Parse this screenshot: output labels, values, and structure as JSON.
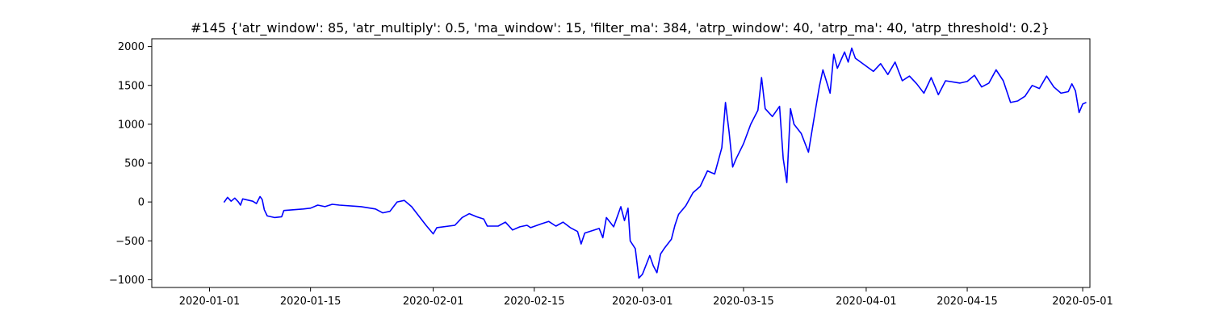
{
  "chart_data": {
    "type": "line",
    "title": "#145 {'atr_window': 85, 'atr_multiply': 0.5, 'ma_window': 15, 'filter_ma': 384, 'atrp_window': 40, 'atrp_ma': 40, 'atrp_threshold': 0.2}",
    "xlabel": "",
    "ylabel": "",
    "x_type": "date",
    "xlim": [
      "2019-12-24",
      "2020-05-02"
    ],
    "ylim": [
      -1100,
      2100
    ],
    "grid": false,
    "x_ticks": [
      "2020-01-01",
      "2020-01-15",
      "2020-02-01",
      "2020-02-15",
      "2020-03-01",
      "2020-03-15",
      "2020-04-01",
      "2020-04-15",
      "2020-05-01"
    ],
    "y_ticks": [
      2000,
      1500,
      1000,
      500,
      0,
      -500,
      -1000
    ],
    "series": [
      {
        "color": "#0000ff",
        "points": [
          [
            "2020-01-03",
            -5
          ],
          [
            "2020-01-03.5",
            60
          ],
          [
            "2020-01-04",
            10
          ],
          [
            "2020-01-04.5",
            50
          ],
          [
            "2020-01-05",
            0
          ],
          [
            "2020-01-05.3",
            -40
          ],
          [
            "2020-01-05.6",
            40
          ],
          [
            "2020-01-07",
            10
          ],
          [
            "2020-01-07.5",
            -20
          ],
          [
            "2020-01-08",
            70
          ],
          [
            "2020-01-08.3",
            30
          ],
          [
            "2020-01-08.6",
            -100
          ],
          [
            "2020-01-09",
            -180
          ],
          [
            "2020-01-10",
            -200
          ],
          [
            "2020-01-11",
            -190
          ],
          [
            "2020-01-11.3",
            -110
          ],
          [
            "2020-01-14",
            -90
          ],
          [
            "2020-01-15",
            -80
          ],
          [
            "2020-01-16",
            -40
          ],
          [
            "2020-01-17",
            -60
          ],
          [
            "2020-01-18",
            -30
          ],
          [
            "2020-01-19",
            -40
          ],
          [
            "2020-01-22",
            -60
          ],
          [
            "2020-01-24",
            -90
          ],
          [
            "2020-01-25",
            -140
          ],
          [
            "2020-01-26",
            -120
          ],
          [
            "2020-01-27",
            0
          ],
          [
            "2020-01-28",
            20
          ],
          [
            "2020-01-29",
            -60
          ],
          [
            "2020-01-30",
            -180
          ],
          [
            "2020-01-31",
            -300
          ],
          [
            "2020-02-01",
            -410
          ],
          [
            "2020-02-01.5",
            -330
          ],
          [
            "2020-02-04",
            -300
          ],
          [
            "2020-02-05",
            -200
          ],
          [
            "2020-02-06",
            -150
          ],
          [
            "2020-02-07",
            -190
          ],
          [
            "2020-02-08",
            -220
          ],
          [
            "2020-02-08.5",
            -310
          ],
          [
            "2020-02-10",
            -310
          ],
          [
            "2020-02-11",
            -260
          ],
          [
            "2020-02-12",
            -360
          ],
          [
            "2020-02-13",
            -320
          ],
          [
            "2020-02-14",
            -300
          ],
          [
            "2020-02-14.5",
            -330
          ],
          [
            "2020-02-16",
            -280
          ],
          [
            "2020-02-17",
            -250
          ],
          [
            "2020-02-18",
            -310
          ],
          [
            "2020-02-19",
            -260
          ],
          [
            "2020-02-20",
            -330
          ],
          [
            "2020-02-21",
            -380
          ],
          [
            "2020-02-21.5",
            -540
          ],
          [
            "2020-02-22",
            -400
          ],
          [
            "2020-02-24",
            -340
          ],
          [
            "2020-02-24.5",
            -460
          ],
          [
            "2020-02-25",
            -200
          ],
          [
            "2020-02-26",
            -320
          ],
          [
            "2020-02-27",
            -60
          ],
          [
            "2020-02-27.5",
            -240
          ],
          [
            "2020-02-28",
            -80
          ],
          [
            "2020-02-28.3",
            -500
          ],
          [
            "2020-02-29",
            -600
          ],
          [
            "2020-02-29.5",
            -980
          ],
          [
            "2020-03-01",
            -930
          ],
          [
            "2020-03-02",
            -690
          ],
          [
            "2020-03-02.5",
            -820
          ],
          [
            "2020-03-03",
            -910
          ],
          [
            "2020-03-03.5",
            -670
          ],
          [
            "2020-03-04",
            -600
          ],
          [
            "2020-03-05",
            -480
          ],
          [
            "2020-03-05.5",
            -300
          ],
          [
            "2020-03-06",
            -160
          ],
          [
            "2020-03-07",
            -50
          ],
          [
            "2020-03-08",
            120
          ],
          [
            "2020-03-09",
            200
          ],
          [
            "2020-03-10",
            400
          ],
          [
            "2020-03-11",
            360
          ],
          [
            "2020-03-12",
            700
          ],
          [
            "2020-03-12.5",
            1280
          ],
          [
            "2020-03-13",
            900
          ],
          [
            "2020-03-13.5",
            450
          ],
          [
            "2020-03-14",
            560
          ],
          [
            "2020-03-15",
            750
          ],
          [
            "2020-03-16",
            1000
          ],
          [
            "2020-03-17",
            1180
          ],
          [
            "2020-03-17.5",
            1600
          ],
          [
            "2020-03-18",
            1200
          ],
          [
            "2020-03-19",
            1100
          ],
          [
            "2020-03-20",
            1230
          ],
          [
            "2020-03-20.5",
            560
          ],
          [
            "2020-03-21",
            250
          ],
          [
            "2020-03-21.5",
            1200
          ],
          [
            "2020-03-22",
            1000
          ],
          [
            "2020-03-23",
            880
          ],
          [
            "2020-03-24",
            640
          ],
          [
            "2020-03-25",
            1200
          ],
          [
            "2020-03-25.5",
            1480
          ],
          [
            "2020-03-26",
            1700
          ],
          [
            "2020-03-27",
            1400
          ],
          [
            "2020-03-27.5",
            1900
          ],
          [
            "2020-03-28",
            1720
          ],
          [
            "2020-03-29",
            1930
          ],
          [
            "2020-03-29.5",
            1800
          ],
          [
            "2020-03-30",
            1980
          ],
          [
            "2020-03-30.5",
            1850
          ],
          [
            "2020-04-02",
            1680
          ],
          [
            "2020-04-03",
            1780
          ],
          [
            "2020-04-04",
            1640
          ],
          [
            "2020-04-05",
            1800
          ],
          [
            "2020-04-06",
            1560
          ],
          [
            "2020-04-07",
            1620
          ],
          [
            "2020-04-08",
            1520
          ],
          [
            "2020-04-09",
            1400
          ],
          [
            "2020-04-10",
            1600
          ],
          [
            "2020-04-11",
            1380
          ],
          [
            "2020-04-12",
            1560
          ],
          [
            "2020-04-14",
            1530
          ],
          [
            "2020-04-15",
            1550
          ],
          [
            "2020-04-16",
            1630
          ],
          [
            "2020-04-17",
            1480
          ],
          [
            "2020-04-18",
            1530
          ],
          [
            "2020-04-19",
            1700
          ],
          [
            "2020-04-20",
            1560
          ],
          [
            "2020-04-21",
            1280
          ],
          [
            "2020-04-22",
            1300
          ],
          [
            "2020-04-23",
            1360
          ],
          [
            "2020-04-24",
            1500
          ],
          [
            "2020-04-25",
            1460
          ],
          [
            "2020-04-26",
            1620
          ],
          [
            "2020-04-27",
            1480
          ],
          [
            "2020-04-28",
            1400
          ],
          [
            "2020-04-29",
            1420
          ],
          [
            "2020-04-29.5",
            1520
          ],
          [
            "2020-04-30",
            1430
          ],
          [
            "2020-04-30.5",
            1150
          ],
          [
            "2020-05-01",
            1260
          ],
          [
            "2020-05-01.5",
            1280
          ]
        ]
      }
    ]
  }
}
